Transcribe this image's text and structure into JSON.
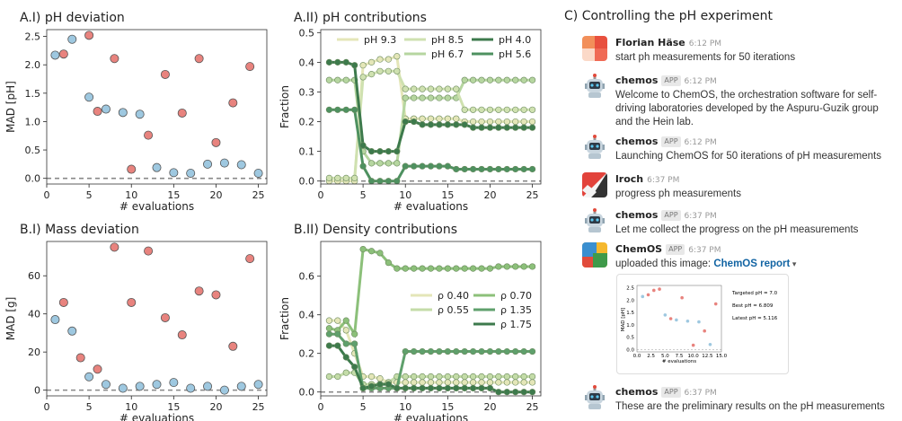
{
  "chart_data": [
    {
      "type": "scatter",
      "title": "A.I) pH deviation",
      "xlabel": "# evaluations",
      "ylabel": "MAD [pH]",
      "xlim": [
        0,
        26
      ],
      "ylim": [
        -0.1,
        2.62
      ],
      "xticks": [
        0,
        5,
        10,
        15,
        20,
        25
      ],
      "yticks": [
        0.0,
        0.5,
        1.0,
        1.5,
        2.0,
        2.5
      ],
      "baseline": 0,
      "series": [
        {
          "color": "#e8837e",
          "x": [
            2,
            5,
            6,
            8,
            10,
            12,
            14,
            16,
            18,
            20,
            22,
            24
          ],
          "y": [
            2.19,
            2.52,
            1.18,
            2.11,
            0.16,
            0.76,
            1.83,
            1.15,
            2.11,
            0.63,
            1.33,
            1.97
          ]
        },
        {
          "color": "#9ec8e0",
          "x": [
            1,
            3,
            5,
            7,
            9,
            11,
            13,
            15,
            17,
            19,
            21,
            23,
            25
          ],
          "y": [
            2.17,
            2.45,
            1.43,
            1.22,
            1.16,
            1.13,
            0.19,
            0.1,
            0.09,
            0.25,
            0.27,
            0.24,
            0.09
          ]
        }
      ]
    },
    {
      "type": "line",
      "title": "A.II) pH contributions",
      "xlabel": "# evaluations",
      "ylabel": "Fraction",
      "xlim": [
        0,
        26
      ],
      "ylim": [
        -0.01,
        0.51
      ],
      "xticks": [
        0,
        5,
        10,
        15,
        20,
        25
      ],
      "yticks": [
        0.0,
        0.1,
        0.2,
        0.3,
        0.4,
        0.5
      ],
      "baseline": 0,
      "legend": "top",
      "x": [
        1,
        2,
        3,
        4,
        5,
        6,
        7,
        8,
        9,
        10,
        11,
        12,
        13,
        14,
        15,
        16,
        17,
        18,
        19,
        20,
        21,
        22,
        23,
        24,
        25
      ],
      "series": [
        {
          "name": "pH 9.3",
          "color": "#e4e6b8",
          "values": [
            0.0,
            0.0,
            0.0,
            0.0,
            0.39,
            0.4,
            0.41,
            0.41,
            0.42,
            0.21,
            0.21,
            0.21,
            0.21,
            0.21,
            0.21,
            0.21,
            0.2,
            0.2,
            0.2,
            0.2,
            0.2,
            0.2,
            0.2,
            0.2,
            0.2
          ]
        },
        {
          "name": "pH 6.7",
          "color": "#b6d6a0",
          "values": [
            0.34,
            0.34,
            0.34,
            0.34,
            0.1,
            0.06,
            0.06,
            0.06,
            0.06,
            0.28,
            0.28,
            0.28,
            0.28,
            0.28,
            0.28,
            0.28,
            0.34,
            0.34,
            0.34,
            0.34,
            0.34,
            0.34,
            0.34,
            0.34,
            0.34
          ]
        },
        {
          "name": "pH 8.5",
          "color": "#cfe1b0",
          "values": [
            0.01,
            0.01,
            0.01,
            0.01,
            0.35,
            0.36,
            0.37,
            0.37,
            0.37,
            0.31,
            0.31,
            0.31,
            0.31,
            0.31,
            0.31,
            0.31,
            0.24,
            0.24,
            0.24,
            0.24,
            0.24,
            0.24,
            0.24,
            0.24,
            0.24
          ]
        },
        {
          "name": "pH 5.6",
          "color": "#4e9160",
          "values": [
            0.24,
            0.24,
            0.24,
            0.24,
            0.05,
            0.0,
            0.0,
            0.0,
            0.0,
            0.05,
            0.05,
            0.05,
            0.05,
            0.05,
            0.05,
            0.04,
            0.04,
            0.04,
            0.04,
            0.04,
            0.04,
            0.04,
            0.04,
            0.04,
            0.04
          ]
        },
        {
          "name": "pH 4.0",
          "color": "#3d7a4c",
          "values": [
            0.4,
            0.4,
            0.4,
            0.39,
            0.12,
            0.1,
            0.1,
            0.1,
            0.1,
            0.2,
            0.2,
            0.19,
            0.19,
            0.19,
            0.19,
            0.19,
            0.19,
            0.18,
            0.18,
            0.18,
            0.18,
            0.18,
            0.18,
            0.18,
            0.18
          ]
        }
      ]
    },
    {
      "type": "scatter",
      "title": "B.I) Mass deviation",
      "xlabel": "# evaluations",
      "ylabel": "MAD [g]",
      "xlim": [
        0,
        26
      ],
      "ylim": [
        -3,
        78
      ],
      "xticks": [
        0,
        5,
        10,
        15,
        20,
        25
      ],
      "yticks": [
        0,
        20,
        40,
        60
      ],
      "baseline": 0,
      "series": [
        {
          "color": "#e8837e",
          "x": [
            2,
            4,
            6,
            8,
            10,
            12,
            14,
            16,
            18,
            20,
            22,
            24
          ],
          "y": [
            46,
            17,
            11,
            75,
            46,
            73,
            38,
            29,
            52,
            50,
            23,
            69
          ]
        },
        {
          "color": "#9ec8e0",
          "x": [
            1,
            3,
            5,
            7,
            9,
            11,
            13,
            15,
            17,
            19,
            21,
            23,
            25
          ],
          "y": [
            37,
            31,
            7,
            3,
            1,
            2,
            3,
            4,
            1,
            2,
            0,
            2,
            3
          ]
        }
      ]
    },
    {
      "type": "line",
      "title": "B.II) Density contributions",
      "xlabel": "# evaluations",
      "ylabel": "Fraction",
      "xlim": [
        0,
        26
      ],
      "ylim": [
        -0.02,
        0.78
      ],
      "xticks": [
        0,
        5,
        10,
        15,
        20,
        25
      ],
      "yticks": [
        0.0,
        0.2,
        0.4,
        0.6
      ],
      "baseline": 0,
      "legend": "center-right",
      "x": [
        1,
        2,
        3,
        4,
        5,
        6,
        7,
        8,
        9,
        10,
        11,
        12,
        13,
        14,
        15,
        16,
        17,
        18,
        19,
        20,
        21,
        22,
        23,
        24,
        25
      ],
      "series": [
        {
          "name": "ρ 0.40",
          "color": "#e4e6b8",
          "values": [
            0.37,
            0.37,
            0.32,
            0.2,
            0.08,
            0.08,
            0.07,
            0.05,
            0.05,
            0.05,
            0.05,
            0.05,
            0.05,
            0.05,
            0.05,
            0.05,
            0.05,
            0.05,
            0.05,
            0.05,
            0.05,
            0.05,
            0.05,
            0.05,
            0.05
          ]
        },
        {
          "name": "ρ 0.55",
          "color": "#c4dca8",
          "values": [
            0.08,
            0.08,
            0.1,
            0.1,
            0.04,
            0.04,
            0.04,
            0.05,
            0.08,
            0.08,
            0.08,
            0.08,
            0.08,
            0.08,
            0.08,
            0.08,
            0.08,
            0.08,
            0.08,
            0.08,
            0.08,
            0.08,
            0.08,
            0.08,
            0.08
          ]
        },
        {
          "name": "ρ 0.70",
          "color": "#8cc07a",
          "values": [
            0.33,
            0.32,
            0.37,
            0.3,
            0.74,
            0.73,
            0.72,
            0.67,
            0.64,
            0.64,
            0.64,
            0.64,
            0.64,
            0.64,
            0.64,
            0.64,
            0.64,
            0.64,
            0.64,
            0.64,
            0.65,
            0.65,
            0.65,
            0.65,
            0.65
          ]
        },
        {
          "name": "ρ 1.35",
          "color": "#5fa06c",
          "values": [
            0.3,
            0.3,
            0.25,
            0.25,
            0.02,
            0.02,
            0.02,
            0.02,
            0.02,
            0.21,
            0.21,
            0.21,
            0.21,
            0.21,
            0.21,
            0.21,
            0.21,
            0.21,
            0.21,
            0.21,
            0.21,
            0.21,
            0.21,
            0.21,
            0.21
          ]
        },
        {
          "name": "ρ 1.75",
          "color": "#3d7a4c",
          "values": [
            0.24,
            0.24,
            0.18,
            0.13,
            0.02,
            0.03,
            0.04,
            0.04,
            0.02,
            0.02,
            0.02,
            0.02,
            0.02,
            0.02,
            0.02,
            0.02,
            0.02,
            0.02,
            0.02,
            0.02,
            0.0,
            0.0,
            0.0,
            0.0,
            0.0
          ]
        }
      ]
    }
  ],
  "chat": {
    "title": "C) Controlling the pH experiment",
    "messages": [
      {
        "sender": "Florian Häse",
        "badge": "",
        "time": "6:12 PM",
        "text": "start ph measurements for 50 iterations",
        "avatar": "florian"
      },
      {
        "sender": "chemos",
        "badge": "APP",
        "time": "6:12 PM",
        "text": "Welcome to ChemOS, the orchestration software for self-driving laboratories developed by the Aspuru-Guzik group and the Hein lab.",
        "avatar": "robot"
      },
      {
        "sender": "chemos",
        "badge": "APP",
        "time": "6:12 PM",
        "text": "Launching ChemOS for 50 iterations of pH measurements",
        "avatar": "robot"
      },
      {
        "sender": "lroch",
        "badge": "",
        "time": "6:37 PM",
        "text": "progress ph measurements",
        "avatar": "lroch"
      },
      {
        "sender": "chemos",
        "badge": "APP",
        "time": "6:37 PM",
        "text": "Let me collect the progress on the pH measurements",
        "avatar": "robot"
      },
      {
        "sender": "ChemOS",
        "badge": "APP",
        "time": "6:37 PM",
        "text": "uploaded this image:",
        "link": "ChemOS report",
        "avatar": "chemos-logo"
      },
      {
        "sender": "chemos",
        "badge": "APP",
        "time": "6:37 PM",
        "text": "These are the preliminary results on the pH measurements",
        "avatar": "robot"
      }
    ],
    "thumbnail": {
      "lines": [
        "Targeted pH = 7.0",
        "Best pH = 6.809",
        "Latest pH = 5.116"
      ],
      "ylabel": "MAD [pH]",
      "xlabel": "# evaluations",
      "xticks": [
        "0.0",
        "2.5",
        "5.0",
        "7.5",
        "10.0",
        "12.5",
        "15.0"
      ],
      "yticks": [
        "2.5",
        "2.0",
        "1.5",
        "1.0",
        "0.5",
        "0.0"
      ],
      "red": {
        "x": [
          2,
          3,
          4,
          6,
          8,
          10,
          12,
          14
        ],
        "y": [
          2.22,
          2.4,
          2.45,
          1.25,
          2.1,
          0.17,
          0.75,
          1.85
        ]
      },
      "blue": {
        "x": [
          1,
          5,
          7,
          9,
          11,
          13
        ],
        "y": [
          2.15,
          1.4,
          1.2,
          1.15,
          1.12,
          0.2
        ]
      }
    }
  }
}
